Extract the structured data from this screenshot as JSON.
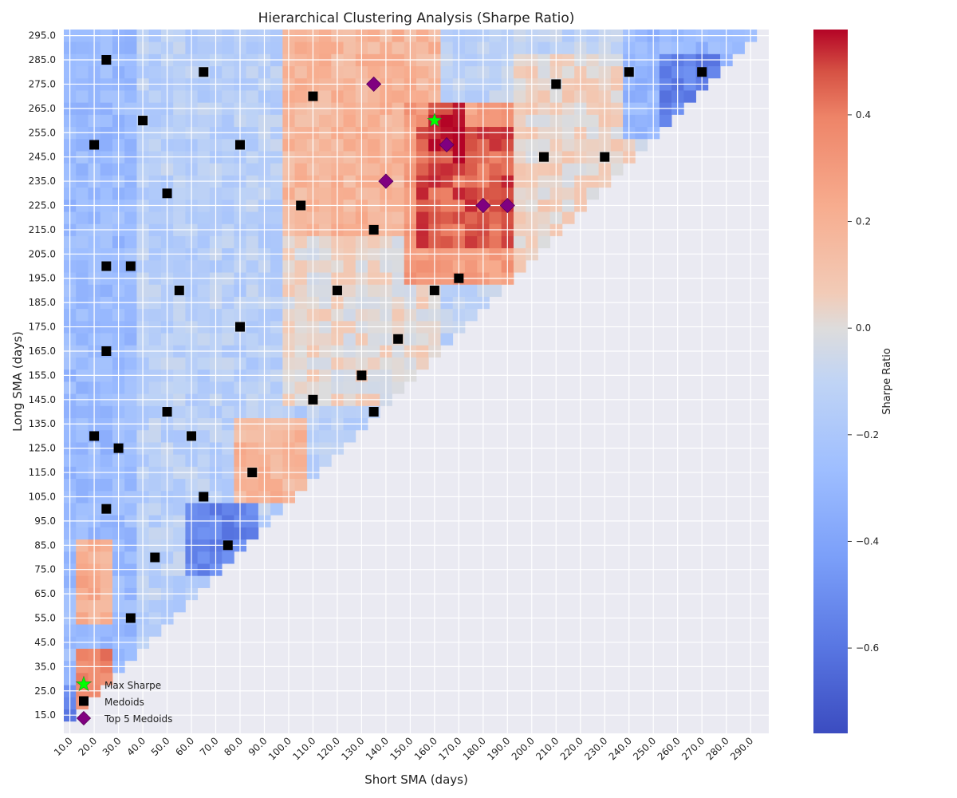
{
  "chart_data": {
    "type": "heatmap",
    "title": "Hierarchical Clustering Analysis (Sharpe Ratio)",
    "xlabel": "Short SMA (days)",
    "ylabel": "Long SMA (days)",
    "colorbar_label": "Sharpe Ratio",
    "colorbar_ticks": [
      "0.4",
      "0.2",
      "0.0",
      "−0.2",
      "−0.4",
      "−0.6"
    ],
    "colorbar_tick_values": [
      0.4,
      0.2,
      0.0,
      -0.2,
      -0.4,
      -0.6
    ],
    "value_range": [
      -0.76,
      0.56
    ],
    "colormap": "coolwarm",
    "x_tick_labels": [
      "10.0",
      "20.0",
      "30.0",
      "40.0",
      "50.0",
      "60.0",
      "70.0",
      "80.0",
      "90.0",
      "100.0",
      "110.0",
      "120.0",
      "130.0",
      "140.0",
      "150.0",
      "160.0",
      "170.0",
      "180.0",
      "190.0",
      "200.0",
      "210.0",
      "220.0",
      "230.0",
      "240.0",
      "250.0",
      "260.0",
      "270.0",
      "280.0",
      "290.0"
    ],
    "y_tick_labels": [
      "295.0",
      "285.0",
      "275.0",
      "265.0",
      "255.0",
      "245.0",
      "235.0",
      "225.0",
      "215.0",
      "205.0",
      "195.0",
      "185.0",
      "175.0",
      "165.0",
      "155.0",
      "145.0",
      "135.0",
      "125.0",
      "115.0",
      "105.0",
      "95.0",
      "85.0",
      "75.0",
      "65.0",
      "55.0",
      "45.0",
      "35.0",
      "25.0",
      "15.0"
    ],
    "x_range": [
      10,
      300
    ],
    "y_range": [
      10,
      300
    ],
    "cell_step_days": 5,
    "valid_region": "long SMA > short SMA (upper-left triangle)",
    "background_color": "#eaeaf2",
    "grid": true,
    "legend_position": "lower-left",
    "legend": {
      "max_sharpe": "Max Sharpe",
      "medoids": "Medoids",
      "top5": "Top 5 Medoids"
    },
    "value_regions": [
      {
        "short": [
          10,
          40
        ],
        "long": [
          15,
          300
        ],
        "value": -0.28
      },
      {
        "short": [
          10,
          20
        ],
        "long": [
          15,
          30
        ],
        "value": -0.55
      },
      {
        "short": [
          15,
          25
        ],
        "long": [
          25,
          45
        ],
        "value": 0.38
      },
      {
        "short": [
          15,
          25
        ],
        "long": [
          60,
          90
        ],
        "value": 0.22
      },
      {
        "short": [
          40,
          110
        ],
        "long": [
          50,
          300
        ],
        "value": -0.14
      },
      {
        "short": [
          60,
          85
        ],
        "long": [
          80,
          105
        ],
        "value": -0.55
      },
      {
        "short": [
          80,
          105
        ],
        "long": [
          110,
          140
        ],
        "value": 0.18
      },
      {
        "short": [
          100,
          160
        ],
        "long": [
          150,
          220
        ],
        "value": 0.02
      },
      {
        "short": [
          100,
          160
        ],
        "long": [
          220,
          300
        ],
        "value": 0.18
      },
      {
        "short": [
          150,
          200
        ],
        "long": [
          200,
          270
        ],
        "value": 0.3
      },
      {
        "short": [
          155,
          195
        ],
        "long": [
          215,
          260
        ],
        "value": 0.46
      },
      {
        "short": [
          160,
          170
        ],
        "long": [
          250,
          270
        ],
        "value": 0.52
      },
      {
        "short": [
          195,
          240
        ],
        "long": [
          200,
          290
        ],
        "value": 0.04
      },
      {
        "short": [
          240,
          300
        ],
        "long": [
          260,
          300
        ],
        "value": -0.3
      },
      {
        "short": [
          255,
          275
        ],
        "long": [
          265,
          290
        ],
        "value": -0.55
      }
    ],
    "max_sharpe": {
      "short": 160,
      "long": 265,
      "value": 0.56
    },
    "medoids": [
      {
        "short": 25,
        "long": 290
      },
      {
        "short": 65,
        "long": 285
      },
      {
        "short": 110,
        "long": 275
      },
      {
        "short": 210,
        "long": 280
      },
      {
        "short": 240,
        "long": 285
      },
      {
        "short": 270,
        "long": 285
      },
      {
        "short": 40,
        "long": 265
      },
      {
        "short": 20,
        "long": 255
      },
      {
        "short": 80,
        "long": 255
      },
      {
        "short": 205,
        "long": 250
      },
      {
        "short": 230,
        "long": 250
      },
      {
        "short": 50,
        "long": 235
      },
      {
        "short": 105,
        "long": 230
      },
      {
        "short": 135,
        "long": 220
      },
      {
        "short": 25,
        "long": 205
      },
      {
        "short": 35,
        "long": 205
      },
      {
        "short": 170,
        "long": 200
      },
      {
        "short": 55,
        "long": 195
      },
      {
        "short": 120,
        "long": 195
      },
      {
        "short": 160,
        "long": 195
      },
      {
        "short": 80,
        "long": 180
      },
      {
        "short": 145,
        "long": 175
      },
      {
        "short": 25,
        "long": 170
      },
      {
        "short": 130,
        "long": 160
      },
      {
        "short": 110,
        "long": 150
      },
      {
        "short": 50,
        "long": 145
      },
      {
        "short": 135,
        "long": 145
      },
      {
        "short": 20,
        "long": 135
      },
      {
        "short": 60,
        "long": 135
      },
      {
        "short": 30,
        "long": 130
      },
      {
        "short": 85,
        "long": 120
      },
      {
        "short": 65,
        "long": 110
      },
      {
        "short": 25,
        "long": 105
      },
      {
        "short": 75,
        "long": 90
      },
      {
        "short": 45,
        "long": 85
      },
      {
        "short": 35,
        "long": 60
      }
    ],
    "top5_medoids": [
      {
        "short": 135,
        "long": 280
      },
      {
        "short": 165,
        "long": 255
      },
      {
        "short": 140,
        "long": 240
      },
      {
        "short": 180,
        "long": 230
      },
      {
        "short": 190,
        "long": 230
      }
    ]
  }
}
